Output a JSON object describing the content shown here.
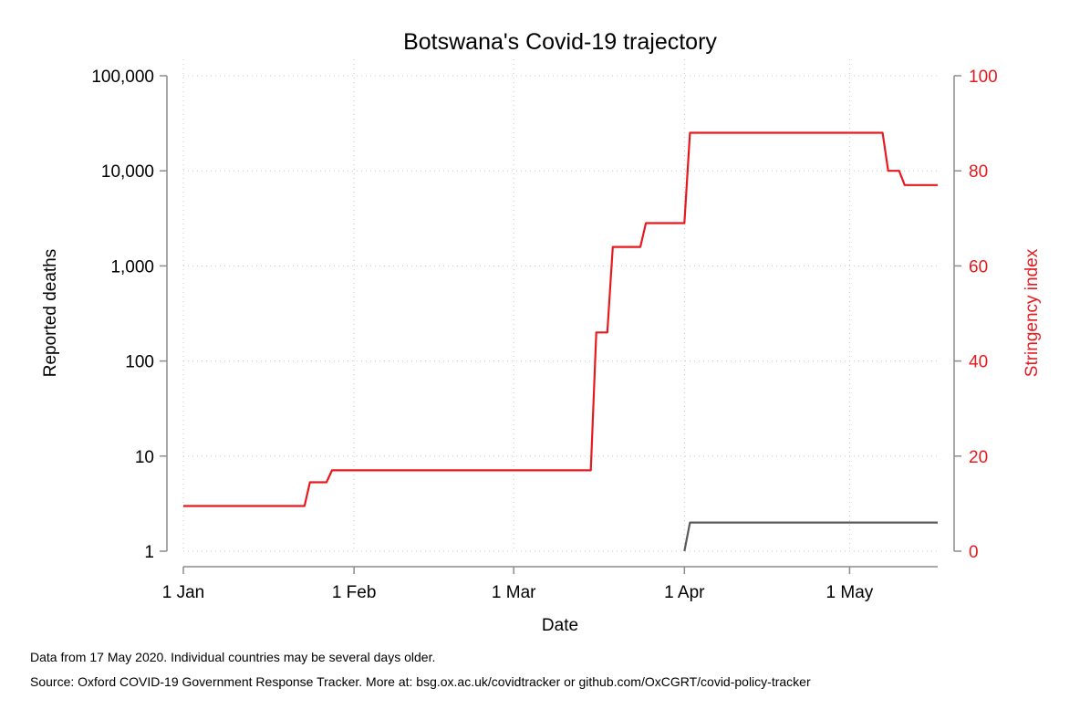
{
  "chart_data": {
    "type": "line",
    "title": "Botswana's Covid-19 trajectory",
    "xlabel": "Date",
    "ylabel_left": "Reported deaths",
    "ylabel_right": "Stringency index",
    "x_ticks": [
      "1 Jan",
      "1 Feb",
      "1 Mar",
      "1 Apr",
      "1 May"
    ],
    "x_tick_days": [
      0,
      31,
      60,
      91,
      121
    ],
    "xlim_days": [
      0,
      137
    ],
    "y_left_scale": "log",
    "y_left_ticks": [
      "1",
      "10",
      "100",
      "1,000",
      "10,000",
      "100,000"
    ],
    "y_left_lim": [
      1,
      100000
    ],
    "y_right_ticks": [
      "0",
      "20",
      "40",
      "60",
      "80",
      "100"
    ],
    "y_right_lim": [
      0,
      100
    ],
    "grid": true,
    "series": [
      {
        "name": "",
        "axis": "left",
        "color": "#5a5a5a",
        "x_days": [
          91,
          92,
          137
        ],
        "values": [
          1,
          2,
          2
        ]
      },
      {
        "name": "",
        "axis": "right",
        "color": "#e8191e",
        "x_days": [
          0,
          22,
          23,
          26,
          27,
          74,
          75,
          77,
          78,
          83,
          84,
          91,
          92,
          127,
          128,
          130,
          131,
          137
        ],
        "values": [
          9.5,
          9.5,
          14.5,
          14.5,
          17,
          17,
          46,
          46,
          64,
          64,
          69,
          69,
          88,
          88,
          80,
          80,
          77,
          77
        ]
      }
    ]
  },
  "notes": {
    "data_date": "Data from 17 May 2020. Individual countries may be several days older.",
    "source": "Source: Oxford COVID-19 Government Response Tracker. More at: bsg.ox.ac.uk/covidtracker or github.com/OxCGRT/covid-policy-tracker"
  }
}
